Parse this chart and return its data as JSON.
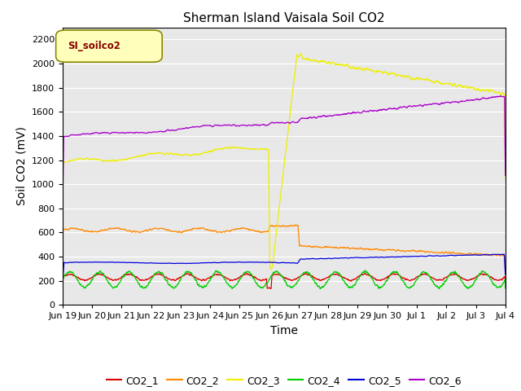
{
  "title": "Sherman Island Vaisala Soil CO2",
  "ylabel": "Soil CO2 (mV)",
  "xlabel": "Time",
  "legend_label": "SI_soilco2",
  "series_names": [
    "CO2_1",
    "CO2_2",
    "CO2_3",
    "CO2_4",
    "CO2_5",
    "CO2_6"
  ],
  "series_colors": [
    "#dd0000",
    "#ff8800",
    "#eeee00",
    "#00cc00",
    "#0000dd",
    "#aa00cc"
  ],
  "ylim": [
    0,
    2300
  ],
  "yticks": [
    0,
    200,
    400,
    600,
    800,
    1000,
    1200,
    1400,
    1600,
    1800,
    2000,
    2200
  ],
  "xtick_labels": [
    "Jun 19",
    "Jun 20",
    "Jun 21",
    "Jun 22",
    "Jun 23",
    "Jun 24",
    "Jun 25",
    "Jun 26",
    "Jun 27",
    "Jun 28",
    "Jun 29",
    "Jun 30",
    "Jul 1",
    "Jul 2",
    "Jul 3",
    "Jul 4"
  ],
  "background_color": "#e8e8e8",
  "title_fontsize": 11,
  "axis_label_fontsize": 10,
  "tick_fontsize": 8,
  "legend_fontsize": 9
}
